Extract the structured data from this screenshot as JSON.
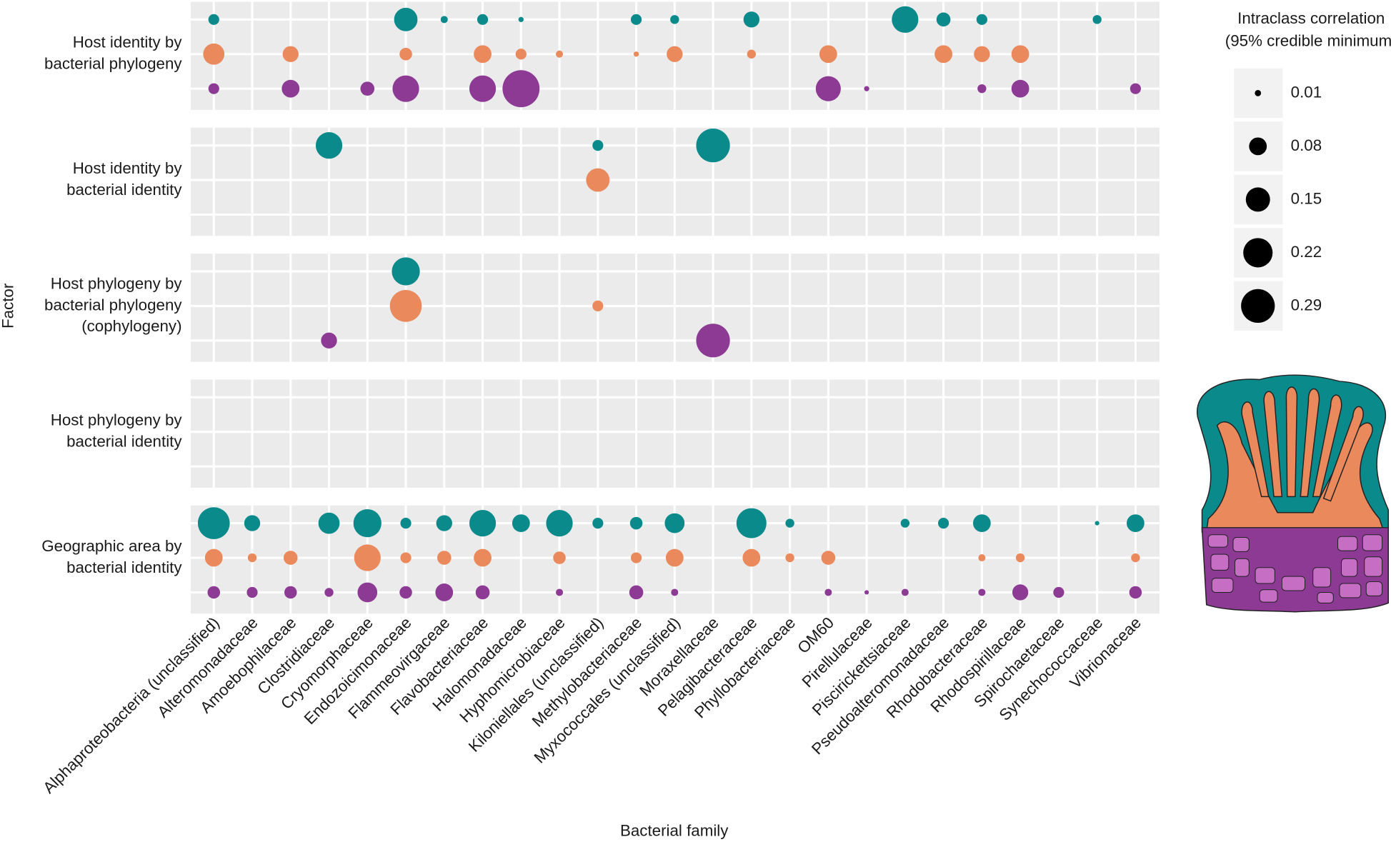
{
  "chart_data": {
    "type": "bubble",
    "x_label": "Bacterial family",
    "y_label": "Factor",
    "grid": true,
    "categories": [
      "Alphaproteobacteria (unclassified)",
      "Alteromonadaceae",
      "Amoebophilaceae",
      "Clostridiaceae",
      "Cryomorphaceae",
      "Endozoicimonaceae",
      "Flammeovirgaceae",
      "Flavobacteriaceae",
      "Halomonadaceae",
      "Hyphomicrobiaceae",
      "Kiloniellales (unclassified)",
      "Methylobacteriaceae",
      "Myxococcales (unclassified)",
      "Moraxellaceae",
      "Pelagibacteraceae",
      "Phyllobacteriaceae",
      "OM60",
      "Pirellulaceae",
      "Piscirickettsiaceae",
      "Pseudoalteromonadaceae",
      "Rhodobacteraceae",
      "Rhodospirillaceae",
      "Spirochaetaceae",
      "Synechococcaceae",
      "Vibrionaceae"
    ],
    "panels": [
      {
        "label": [
          "Host identity by",
          "bacterial phylogeny"
        ],
        "series": [
          {
            "color": "#0b8a8c",
            "values": [
              0.03,
              null,
              null,
              null,
              null,
              0.14,
              0.013,
              0.03,
              0.007,
              null,
              null,
              0.03,
              0.02,
              null,
              0.065,
              null,
              null,
              null,
              0.18,
              0.05,
              0.03,
              null,
              null,
              0.02,
              null
            ]
          },
          {
            "color": "#ea8a5c",
            "values": [
              0.115,
              null,
              0.065,
              null,
              null,
              0.04,
              null,
              0.08,
              0.03,
              0.013,
              null,
              0.007,
              0.065,
              null,
              0.02,
              null,
              0.08,
              null,
              null,
              0.08,
              0.065,
              0.08,
              null,
              null,
              null
            ]
          },
          {
            "color": "#8d3a95",
            "values": [
              0.03,
              null,
              0.08,
              null,
              0.05,
              0.18,
              null,
              0.18,
              0.35,
              null,
              null,
              null,
              null,
              null,
              null,
              null,
              0.16,
              0.007,
              null,
              null,
              0.02,
              0.08,
              null,
              null,
              0.03
            ]
          }
        ]
      },
      {
        "label": [
          "Host identity by",
          "bacterial identity"
        ],
        "series": [
          {
            "color": "#0b8a8c",
            "values": [
              null,
              null,
              null,
              0.18,
              null,
              null,
              null,
              null,
              null,
              null,
              0.03,
              null,
              null,
              0.29,
              null,
              null,
              null,
              null,
              null,
              null,
              null,
              null,
              null,
              null,
              null
            ]
          },
          {
            "color": "#ea8a5c",
            "values": [
              null,
              null,
              null,
              null,
              null,
              null,
              null,
              null,
              null,
              null,
              0.14,
              null,
              null,
              null,
              null,
              null,
              null,
              null,
              null,
              null,
              null,
              null,
              null,
              null,
              null
            ]
          },
          {
            "color": "#8d3a95",
            "values": [
              null,
              null,
              null,
              null,
              null,
              null,
              null,
              null,
              null,
              null,
              null,
              null,
              null,
              null,
              null,
              null,
              null,
              null,
              null,
              null,
              null,
              null,
              null,
              null,
              null
            ]
          }
        ]
      },
      {
        "label": [
          "Host phylogeny by",
          "bacterial phylogeny",
          "(cophylogeny)"
        ],
        "series": [
          {
            "color": "#0b8a8c",
            "values": [
              null,
              null,
              null,
              null,
              null,
              0.2,
              null,
              null,
              null,
              null,
              null,
              null,
              null,
              null,
              null,
              null,
              null,
              null,
              null,
              null,
              null,
              null,
              null,
              null,
              null
            ]
          },
          {
            "color": "#ea8a5c",
            "values": [
              null,
              null,
              null,
              null,
              null,
              0.26,
              null,
              null,
              null,
              null,
              0.03,
              null,
              null,
              null,
              null,
              null,
              null,
              null,
              null,
              null,
              null,
              null,
              null,
              null,
              null
            ]
          },
          {
            "color": "#8d3a95",
            "values": [
              null,
              null,
              null,
              0.065,
              null,
              null,
              null,
              null,
              null,
              null,
              null,
              null,
              null,
              0.29,
              null,
              null,
              null,
              null,
              null,
              null,
              null,
              null,
              null,
              null,
              null
            ]
          }
        ]
      },
      {
        "label": [
          "Host phylogeny by",
          "bacterial identity"
        ],
        "series": [
          {
            "color": "#0b8a8c",
            "values": [
              null,
              null,
              null,
              null,
              null,
              null,
              null,
              null,
              null,
              null,
              null,
              null,
              null,
              null,
              null,
              null,
              null,
              null,
              null,
              null,
              null,
              null,
              null,
              null,
              null
            ]
          },
          {
            "color": "#ea8a5c",
            "values": [
              null,
              null,
              null,
              null,
              null,
              null,
              null,
              null,
              null,
              null,
              null,
              null,
              null,
              null,
              null,
              null,
              null,
              null,
              null,
              null,
              null,
              null,
              null,
              null,
              null
            ]
          },
          {
            "color": "#8d3a95",
            "values": [
              null,
              null,
              null,
              null,
              null,
              null,
              null,
              null,
              null,
              null,
              null,
              null,
              null,
              null,
              null,
              null,
              null,
              null,
              null,
              null,
              null,
              null,
              null,
              null,
              null
            ]
          }
        ]
      },
      {
        "label": [
          "Geographic area by",
          "bacterial identity"
        ],
        "series": [
          {
            "color": "#0b8a8c",
            "values": [
              0.26,
              0.065,
              null,
              0.115,
              0.2,
              0.03,
              0.065,
              0.18,
              0.08,
              0.18,
              0.03,
              0.04,
              0.1,
              null,
              0.23,
              0.02,
              null,
              null,
              0.02,
              0.03,
              0.08,
              null,
              null,
              0.005,
              0.08
            ]
          },
          {
            "color": "#ea8a5c",
            "values": [
              0.08,
              0.02,
              0.05,
              null,
              0.18,
              0.03,
              0.05,
              0.08,
              null,
              0.04,
              null,
              0.03,
              0.08,
              null,
              0.08,
              0.02,
              0.05,
              null,
              null,
              null,
              0.013,
              0.02,
              null,
              null,
              0.02
            ]
          },
          {
            "color": "#8d3a95",
            "values": [
              0.04,
              0.03,
              0.04,
              0.02,
              0.1,
              0.04,
              0.08,
              0.05,
              null,
              0.013,
              null,
              0.05,
              0.013,
              null,
              null,
              null,
              0.013,
              0.005,
              0.013,
              null,
              0.013,
              0.065,
              0.03,
              null,
              0.04
            ]
          }
        ]
      }
    ],
    "size_legend": {
      "title": [
        "Intraclass correlation",
        "(95% credible minimum)"
      ],
      "values": [
        0.01,
        0.08,
        0.15,
        0.22,
        0.29
      ]
    }
  }
}
